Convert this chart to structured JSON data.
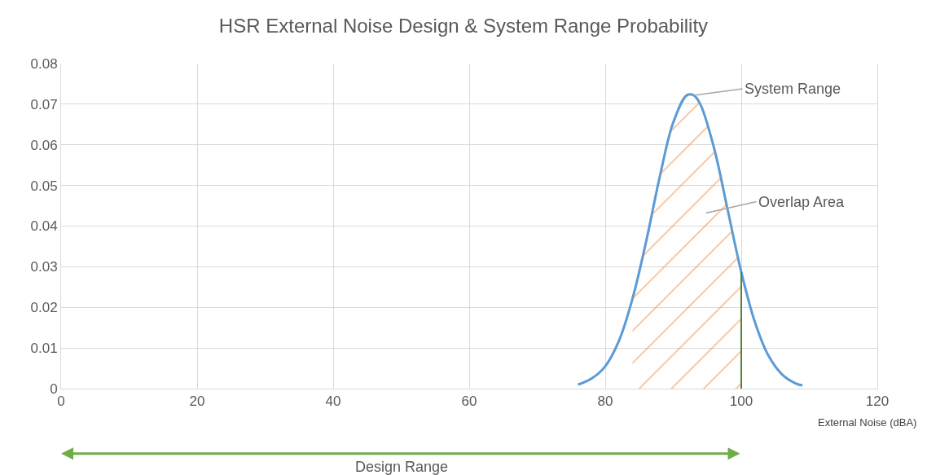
{
  "chart_data": {
    "type": "line",
    "title": "HSR External Noise Design & System Range Probability",
    "xlabel": "External Noise (dBA)",
    "series": [
      {
        "color": "#5b9bd5",
        "x": [
          76,
          78,
          80,
          82,
          84,
          86,
          88,
          90,
          92,
          93,
          94,
          96,
          98,
          100,
          102,
          104,
          106,
          108,
          109
        ],
        "values": [
          0.001,
          0.0025,
          0.0055,
          0.0117,
          0.0221,
          0.0361,
          0.052,
          0.0655,
          0.0722,
          0.0722,
          0.0699,
          0.0592,
          0.044,
          0.0287,
          0.0164,
          0.0081,
          0.0035,
          0.0013,
          0.0008
        ]
      },
      {
        "type": "area",
        "color": "#ed7d31",
        "x": [
          84,
          86,
          88,
          90,
          92,
          93,
          94,
          96,
          98,
          100
        ],
        "values": [
          0.0221,
          0.0361,
          0.052,
          0.0655,
          0.0722,
          0.0722,
          0.0699,
          0.0592,
          0.044,
          0.0287
        ]
      }
    ],
    "annotations": [
      {
        "text": "System Range",
        "x": 93,
        "y": 0.0722
      },
      "Overlap Area",
      "Design Range"
    ],
    "ref_lines": [
      {
        "axis": "x",
        "value": 100,
        "color": "#548235"
      }
    ],
    "xlim": [
      0,
      120
    ],
    "xticks": [
      0,
      20,
      40,
      60,
      80,
      100,
      120
    ],
    "ylim": [
      0,
      0.08
    ],
    "yticks": [
      0,
      0.01,
      0.02,
      0.03,
      0.04,
      0.05,
      0.06,
      0.07,
      0.08
    ],
    "grid": true
  }
}
